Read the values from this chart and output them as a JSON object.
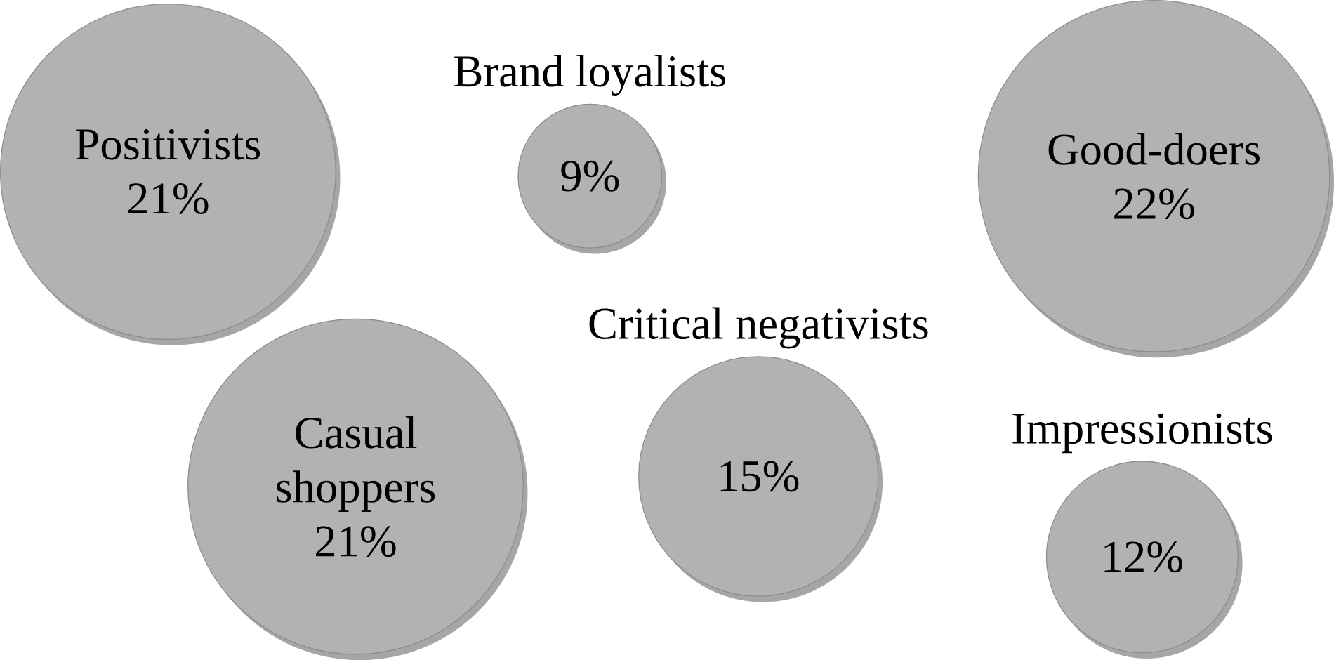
{
  "chart_data": {
    "type": "other",
    "categories": [
      "Positivists",
      "Brand loyalists",
      "Good-doers",
      "Critical negativists",
      "Casual shoppers",
      "Impressionists"
    ],
    "values": [
      21,
      9,
      22,
      15,
      21,
      12
    ],
    "value_labels": [
      "21%",
      "9%",
      "22%",
      "15%",
      "21%",
      "12%"
    ],
    "colors": [
      "#b2b2b2",
      "#b2b2b2",
      "#b2b2b2",
      "#b2b2b2",
      "#b2b2b2",
      "#b2b2b2"
    ]
  }
}
